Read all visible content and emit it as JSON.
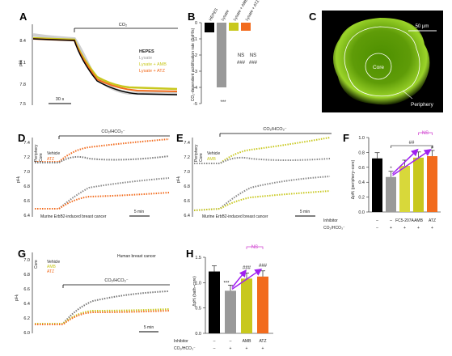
{
  "panels": {
    "A": {
      "label": "A",
      "bar_label": "CO₂",
      "scale": "30 s",
      "ylabel": "pHᵢ",
      "yticks": [
        "8.4",
        "8.1",
        "7.8",
        "7.5"
      ],
      "legend": [
        {
          "text": "HEPES",
          "color": "#000000"
        },
        {
          "text": "Lysate",
          "color": "#999999"
        },
        {
          "text": "Lysate + AMB",
          "color": "#c8c81e"
        },
        {
          "text": "Lysate + ATZ",
          "color": "#f26b1d"
        }
      ]
    },
    "B": {
      "label": "B",
      "ylabel": "CO₂-dependent acidification rate (ΔpH/s)",
      "yticks": [
        "0",
        "-1",
        "-2",
        "-3",
        "-4",
        "-5"
      ],
      "categories": [
        "HEPES",
        "Lysate",
        "Lysate + AMB",
        "Lysate + ATZ"
      ],
      "sig_top": [
        "NS",
        "NS"
      ],
      "sig_bot": [
        "###",
        "###"
      ],
      "sig_lysate": "***"
    },
    "C": {
      "label": "C",
      "scale": "50 μm",
      "core": "Core",
      "periphery": "Periphery"
    },
    "D": {
      "label": "D",
      "bar_label": "CO₂/HCO₃⁻",
      "ylabel": "pHᵢ",
      "yticks": [
        "7.4",
        "7.2",
        "7.0",
        "6.8",
        "6.6",
        "6.4"
      ],
      "key_top": "Periphery",
      "key_bot": "Core",
      "legend": [
        "Vehicle",
        "ATZ"
      ],
      "caption": "Murine ErbB2-induced breast cancer",
      "scale": "5 min"
    },
    "E": {
      "label": "E",
      "bar_label": "CO₂/HCO₃⁻",
      "ylabel": "pHᵢ",
      "yticks": [
        "7.4",
        "7.2",
        "7.0",
        "6.8",
        "6.6",
        "6.4"
      ],
      "key_top": "Periphery",
      "key_bot": "Core",
      "legend": [
        "Vehicle",
        "AMB"
      ],
      "caption": "Murine ErbB2-induced breast cancer",
      "scale": "5 min"
    },
    "F": {
      "label": "F",
      "ylabel": "ΔpHᵢ (periphery–core)",
      "yticks": [
        "1.0",
        "0.8",
        "0.6",
        "0.4",
        "0.2",
        "0.0"
      ],
      "inhibitor_label": "Inhibitor",
      "co2_label": "CO₂/HCO₃⁻",
      "inhibitors": [
        "–",
        "–",
        "FC5-207A",
        "AMB",
        "ATZ"
      ],
      "co2": [
        "–",
        "+",
        "+",
        "+",
        "+"
      ],
      "sig": {
        "ns": "NS",
        "hash2": "##",
        "star": "*",
        "hash1": "#"
      }
    },
    "G": {
      "label": "G",
      "bar_label": "CO₂/HCO₃⁻",
      "ylabel": "pHᵢ",
      "yticks": [
        "7.0",
        "6.8",
        "6.6",
        "6.4",
        "6.2",
        "6.0"
      ],
      "key": "Core",
      "legend": [
        "Vehicle",
        "AMB",
        "ATZ"
      ],
      "caption": "Human breast cancer",
      "scale": "5 min"
    },
    "H": {
      "label": "H",
      "ylabel": "ΔpHᵢ (bath–core)",
      "yticks": [
        "1.5",
        "1.0",
        "0.5",
        "0.0"
      ],
      "inhibitor_label": "Inhibitor",
      "co2_label": "CO₂/HCO₃⁻",
      "inhibitors": [
        "–",
        "–",
        "AMB",
        "ATZ"
      ],
      "co2": [
        "–",
        "+",
        "+",
        "+"
      ],
      "sig": {
        "ns": "NS",
        "star": "***",
        "hash_a": "###",
        "hash_b": "###"
      }
    }
  },
  "colors": {
    "black": "#000000",
    "grey": "#999999",
    "yellow": "#c8c81e",
    "orange": "#f26b1d",
    "purple": "#a020f0",
    "ns": "#d040d0",
    "tissue": "#6fa20a"
  },
  "chart_data": [
    {
      "panel": "B",
      "type": "bar",
      "categories": [
        "HEPES",
        "Lysate",
        "Lysate + AMB",
        "Lysate + ATZ"
      ],
      "values": [
        -0.6,
        -4.0,
        -0.5,
        -0.5
      ],
      "ylim": [
        -5,
        0
      ]
    },
    {
      "panel": "F",
      "type": "bar",
      "categories": [
        "–/–",
        "–/+",
        "FC5-207A/+",
        "AMB/+",
        "ATZ/+"
      ],
      "values": [
        0.72,
        0.47,
        0.62,
        0.73,
        0.75
      ],
      "ylim": [
        0,
        1.0
      ]
    },
    {
      "panel": "H",
      "type": "bar",
      "categories": [
        "–/–",
        "–/+",
        "AMB/+",
        "ATZ/+"
      ],
      "values": [
        1.22,
        0.84,
        1.08,
        1.12
      ],
      "ylim": [
        0,
        1.5
      ]
    }
  ]
}
